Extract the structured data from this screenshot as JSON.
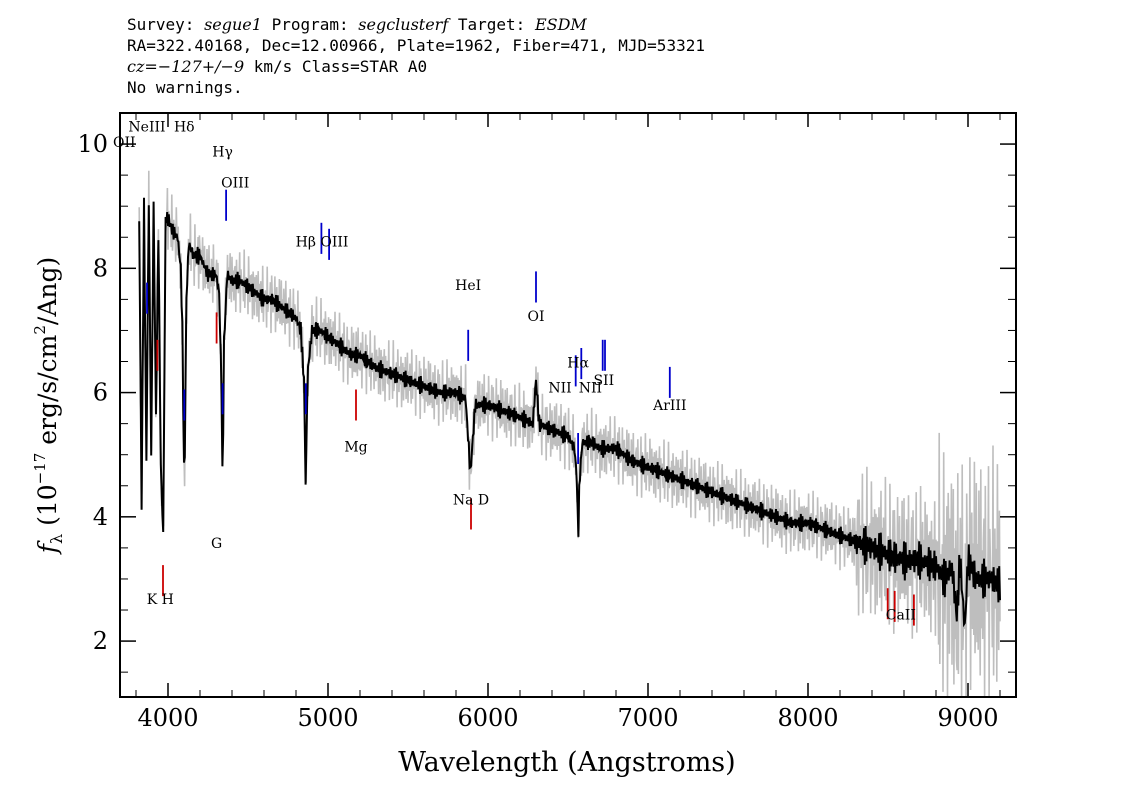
{
  "header": {
    "line1": {
      "survey_label": "Survey: ",
      "survey": "segue1",
      "program_label": " Program: ",
      "program": "segclusterf",
      "target_label": " Target: ",
      "target": "ESDM"
    },
    "line2": "RA=322.40168, Dec=12.00966, Plate=1962, Fiber=471, MJD=53321",
    "line3": {
      "cz_label": "cz",
      "cz_value": "=−127+/−9",
      "rest": " km/s Class=STAR A0"
    },
    "line4": "No warnings."
  },
  "colors": {
    "flux": "#000000",
    "noise": "#bebebe",
    "emission": "#0000cc",
    "absorption": "#cc0000"
  },
  "chart_data": {
    "type": "line",
    "title": "",
    "xlabel": "Wavelength (Angstroms)",
    "ylabel_parts": {
      "f": "f",
      "sub": "λ",
      "open": " (10",
      "exp": "−17",
      "mid": " erg/s/cm",
      "sq": "2",
      "close": "/Ang)"
    },
    "xlim": [
      3700,
      9300
    ],
    "ylim": [
      1.1,
      10.5
    ],
    "x_ticks": [
      4000,
      5000,
      6000,
      7000,
      8000,
      9000
    ],
    "x_tick_labels": [
      "4000",
      "5000",
      "6000",
      "7000",
      "8000",
      "9000"
    ],
    "y_ticks": [
      2,
      4,
      6,
      8,
      10
    ],
    "y_tick_labels": [
      "2",
      "4",
      "6",
      "8",
      "10"
    ],
    "grid": false,
    "series": [
      {
        "role": "flux",
        "x": [
          3820,
          3835,
          3850,
          3865,
          3880,
          3895,
          3910,
          3925,
          3940,
          3955,
          3970,
          3985,
          4000,
          4030,
          4060,
          4080,
          4090,
          4102,
          4115,
          4130,
          4160,
          4200,
          4250,
          4300,
          4320,
          4335,
          4341,
          4350,
          4370,
          4400,
          4450,
          4500,
          4550,
          4600,
          4650,
          4700,
          4750,
          4800,
          4830,
          4850,
          4861,
          4872,
          4900,
          4950,
          5000,
          5050,
          5100,
          5150,
          5200,
          5300,
          5400,
          5500,
          5600,
          5700,
          5800,
          5860,
          5890,
          5920,
          6000,
          6100,
          6200,
          6280,
          6300,
          6320,
          6400,
          6500,
          6540,
          6556,
          6563,
          6572,
          6590,
          6650,
          6700,
          6800,
          6900,
          7000,
          7100,
          7200,
          7300,
          7400,
          7500,
          7600,
          7700,
          7800,
          7900,
          8000,
          8100,
          8200,
          8300,
          8400,
          8500,
          8600,
          8700,
          8800,
          8850,
          8900,
          8930,
          8950,
          8980,
          9000,
          9050,
          9100,
          9150,
          9200
        ],
        "y": [
          8.8,
          4.2,
          9.0,
          4.9,
          9.1,
          5.0,
          9.0,
          5.6,
          8.6,
          4.8,
          3.7,
          8.8,
          8.8,
          8.6,
          8.5,
          8.0,
          7.0,
          4.3,
          7.5,
          8.4,
          8.2,
          8.2,
          7.9,
          7.9,
          7.6,
          6.0,
          4.4,
          6.8,
          7.9,
          7.8,
          7.8,
          7.7,
          7.6,
          7.5,
          7.5,
          7.4,
          7.3,
          7.2,
          7.0,
          6.2,
          4.4,
          6.3,
          7.0,
          7.0,
          6.9,
          6.8,
          6.7,
          6.6,
          6.6,
          6.4,
          6.3,
          6.2,
          6.1,
          6.0,
          6.0,
          5.9,
          4.7,
          5.8,
          5.8,
          5.7,
          5.6,
          5.5,
          6.2,
          5.5,
          5.4,
          5.3,
          5.1,
          4.6,
          3.6,
          4.6,
          5.2,
          5.2,
          5.1,
          5.1,
          4.9,
          4.8,
          4.7,
          4.6,
          4.5,
          4.4,
          4.3,
          4.2,
          4.1,
          4.0,
          3.9,
          3.9,
          3.8,
          3.7,
          3.6,
          3.5,
          3.4,
          3.3,
          3.3,
          3.2,
          3.0,
          3.2,
          2.4,
          3.3,
          2.2,
          3.3,
          3.0,
          3.0,
          3.0,
          2.9
        ]
      }
    ],
    "line_markers": [
      {
        "label": "NeIII",
        "x": 3869,
        "kind": "emission"
      },
      {
        "label": "Hδ",
        "x": 4102,
        "kind": "emission"
      },
      {
        "label": "Hγ",
        "x": 4341,
        "kind": "emission"
      },
      {
        "label": "OIII",
        "x": 4363,
        "kind": "emission"
      },
      {
        "label": "Hβ",
        "x": 4861,
        "kind": "emission"
      },
      {
        "label": "OIII",
        "x": 4959,
        "kind": "emission"
      },
      {
        "label": "OIII",
        "x": 5007,
        "kind": "emission"
      },
      {
        "label": "HeI",
        "x": 5876,
        "kind": "emission"
      },
      {
        "label": "OI",
        "x": 6300,
        "kind": "emission"
      },
      {
        "label": "NII",
        "x": 6548,
        "kind": "emission"
      },
      {
        "label": "Hα",
        "x": 6563,
        "kind": "emission"
      },
      {
        "label": "NII",
        "x": 6583,
        "kind": "emission"
      },
      {
        "label": "SII",
        "x": 6717,
        "kind": "emission"
      },
      {
        "label": "SII",
        "x": 6731,
        "kind": "emission"
      },
      {
        "label": "ArIII",
        "x": 7136,
        "kind": "emission"
      },
      {
        "label": "K",
        "x": 3934,
        "kind": "absorption"
      },
      {
        "label": "H",
        "x": 3969,
        "kind": "absorption"
      },
      {
        "label": "G",
        "x": 4304,
        "kind": "absorption"
      },
      {
        "label": "Mg",
        "x": 5175,
        "kind": "absorption"
      },
      {
        "label": "Na",
        "x": 5894,
        "kind": "absorption"
      },
      {
        "label": "CaII",
        "x": 8498,
        "kind": "absorption"
      },
      {
        "label": "CaII",
        "x": 8542,
        "kind": "absorption"
      },
      {
        "label": "CaII",
        "x": 8662,
        "kind": "absorption"
      }
    ],
    "annotation_labels": [
      {
        "text": "OII",
        "x": 3727,
        "y": 9.95
      },
      {
        "text": "NeIII",
        "x": 3869,
        "y": 10.2
      },
      {
        "text": "Hδ",
        "x": 4102,
        "y": 10.2
      },
      {
        "text": "Hγ",
        "x": 4341,
        "y": 9.8
      },
      {
        "text": "OIII",
        "x": 4420,
        "y": 9.3
      },
      {
        "text": "Hβ",
        "x": 4861,
        "y": 8.35
      },
      {
        "text": "OIII",
        "x": 5040,
        "y": 8.35
      },
      {
        "text": "HeI",
        "x": 5876,
        "y": 7.65
      },
      {
        "text": "OI",
        "x": 6300,
        "y": 7.15
      },
      {
        "text": "NII",
        "x": 6450,
        "y": 6.0
      },
      {
        "text": "Hα",
        "x": 6563,
        "y": 6.4
      },
      {
        "text": "NII",
        "x": 6640,
        "y": 6.0
      },
      {
        "text": "SII",
        "x": 6724,
        "y": 6.12
      },
      {
        "text": "ArIII",
        "x": 7136,
        "y": 5.72
      },
      {
        "text": "K H",
        "x": 3952,
        "y": 2.6
      },
      {
        "text": "G",
        "x": 4304,
        "y": 3.5
      },
      {
        "text": "Mg",
        "x": 5175,
        "y": 5.05
      },
      {
        "text": "Na D",
        "x": 5894,
        "y": 4.2
      },
      {
        "text": "CaII",
        "x": 8580,
        "y": 2.35
      }
    ]
  }
}
